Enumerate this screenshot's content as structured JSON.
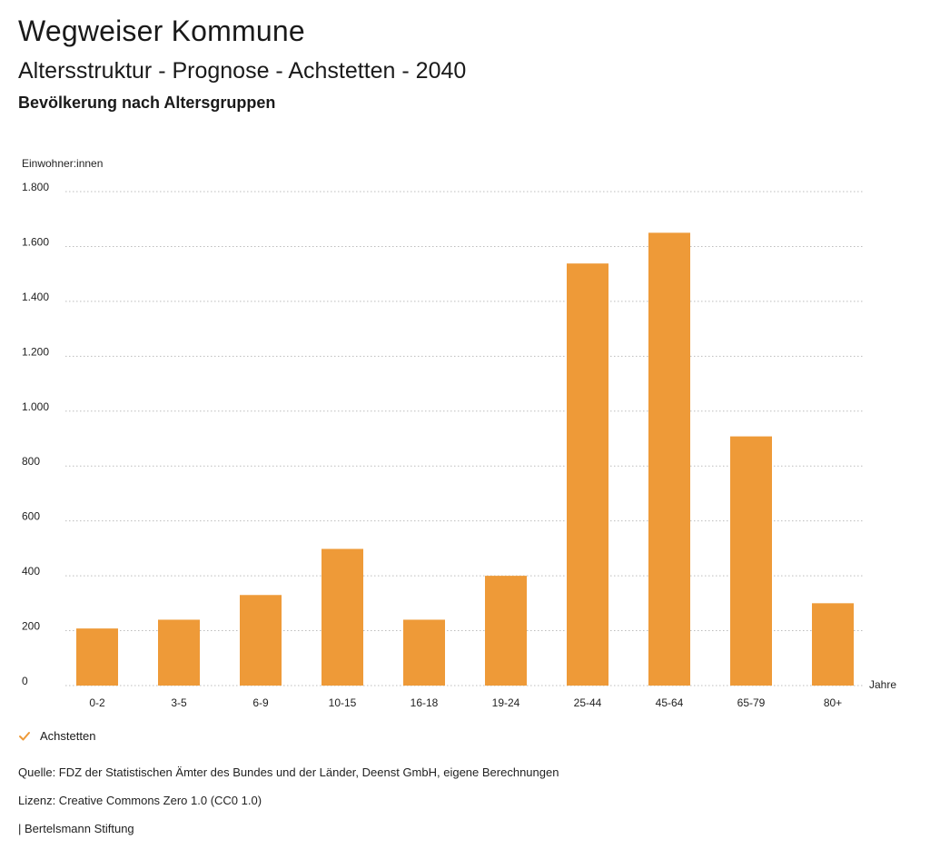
{
  "header": {
    "app_title": "Wegweiser Kommune",
    "chart_title": "Altersstruktur - Prognose - Achstetten - 2040",
    "chart_subtitle": "Bevölkerung nach Altersgruppen"
  },
  "chart_data": {
    "type": "bar",
    "title": "Altersstruktur - Prognose - Achstetten - 2040",
    "subtitle": "Bevölkerung nach Altersgruppen",
    "ylabel": "Einwohner:innen",
    "xlabel": "Jahre",
    "categories": [
      "0-2",
      "3-5",
      "6-9",
      "10-15",
      "16-18",
      "19-24",
      "25-44",
      "45-64",
      "65-79",
      "80+"
    ],
    "series": [
      {
        "name": "Achstetten",
        "values": [
          208,
          240,
          330,
          498,
          240,
          400,
          1538,
          1650,
          908,
          300
        ]
      }
    ],
    "ylim": [
      0,
      1800
    ],
    "yticks": [
      0,
      200,
      400,
      600,
      800,
      1000,
      1200,
      1400,
      1600,
      1800
    ],
    "ytick_labels": [
      "0",
      "200",
      "400",
      "600",
      "800",
      "1.000",
      "1.200",
      "1.400",
      "1.600",
      "1.800"
    ],
    "grid": true,
    "bar_color": "#EE9A38",
    "legend_position": "bottom-left"
  },
  "legend": {
    "label": "Achstetten",
    "icon": "check-icon",
    "color": "#EE9A38"
  },
  "footer": {
    "source": "Quelle: FDZ der Statistischen Ämter des Bundes und der Länder, Deenst GmbH, eigene Berechnungen",
    "license": "Lizenz: Creative Commons Zero 1.0 (CC0 1.0)",
    "publisher": "| Bertelsmann Stiftung"
  }
}
